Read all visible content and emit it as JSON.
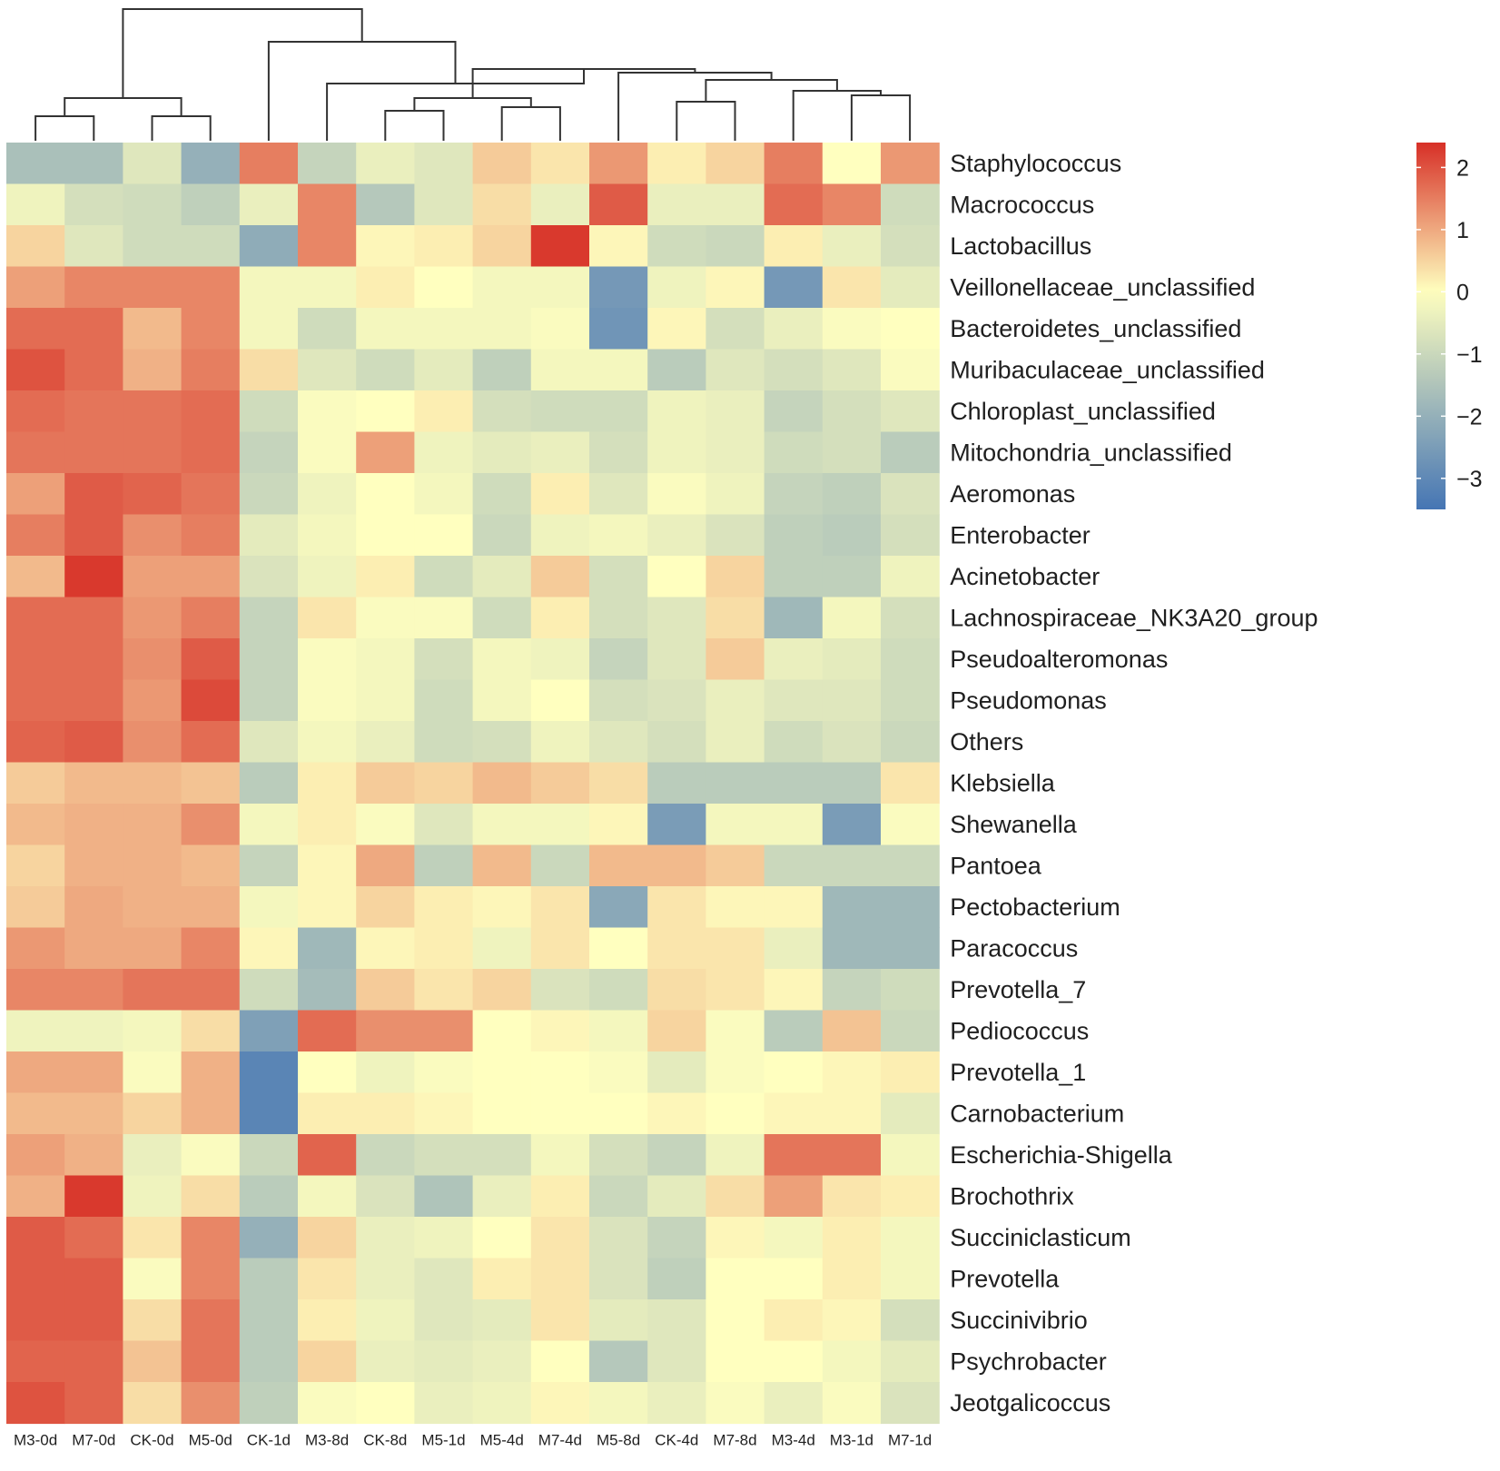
{
  "chart_data": {
    "type": "heatmap",
    "title": "",
    "columns": [
      "M3-0d",
      "M7-0d",
      "CK-0d",
      "M5-0d",
      "CK-1d",
      "M3-8d",
      "CK-8d",
      "M5-1d",
      "M5-4d",
      "M7-4d",
      "M5-8d",
      "CK-4d",
      "M7-8d",
      "M3-4d",
      "M3-1d",
      "M7-1d"
    ],
    "rows": [
      "Staphylococcus",
      "Macrococcus",
      "Lactobacillus",
      "Veillonellaceae_unclassified",
      "Bacteroidetes_unclassified",
      "Muribaculaceae_unclassified",
      "Chloroplast_unclassified",
      "Mitochondria_unclassified",
      "Aeromonas",
      "Enterobacter",
      "Acinetobacter",
      "Lachnospiraceae_NK3A20_group",
      "Pseudoalteromonas",
      "Pseudomonas",
      "Others",
      "Klebsiella",
      "Shewanella",
      "Pantoea",
      "Pectobacterium",
      "Paracoccus",
      "Prevotella_7",
      "Pediococcus",
      "Prevotella_1",
      "Carnobacterium",
      "Escherichia-Shigella",
      "Brochothrix",
      "Succiniclasticum",
      "Prevotella",
      "Succinivibrio",
      "Psychrobacter",
      "Jeotgalicoccus"
    ],
    "values": [
      [
        -1.6,
        -1.6,
        -0.6,
        -2.0,
        1.5,
        -1.1,
        -0.4,
        -0.6,
        0.6,
        0.3,
        1.2,
        0.2,
        0.5,
        1.5,
        0.0,
        1.2
      ],
      [
        -0.3,
        -0.8,
        -0.9,
        -1.2,
        -0.4,
        1.4,
        -1.4,
        -0.6,
        0.4,
        -0.4,
        1.9,
        -0.4,
        -0.4,
        1.7,
        1.4,
        -0.9
      ],
      [
        0.5,
        -0.6,
        -0.9,
        -0.9,
        -2.1,
        1.4,
        0.1,
        0.2,
        0.5,
        2.3,
        0.1,
        -0.9,
        -1.0,
        0.2,
        -0.4,
        -0.8
      ],
      [
        1.1,
        1.4,
        1.4,
        1.4,
        -0.2,
        -0.2,
        0.2,
        0.0,
        -0.2,
        -0.2,
        -2.6,
        -0.3,
        0.1,
        -2.6,
        0.3,
        -0.5
      ],
      [
        1.7,
        1.7,
        0.8,
        1.4,
        -0.2,
        -0.9,
        -0.2,
        -0.2,
        -0.2,
        -0.1,
        -2.7,
        0.1,
        -0.8,
        -0.4,
        -0.1,
        0.0
      ],
      [
        2.0,
        1.7,
        0.9,
        1.5,
        0.4,
        -0.6,
        -0.9,
        -0.5,
        -1.2,
        -0.2,
        -0.2,
        -1.3,
        -0.6,
        -0.8,
        -0.6,
        -0.1
      ],
      [
        1.7,
        1.6,
        1.6,
        1.7,
        -0.9,
        -0.1,
        0.0,
        0.2,
        -0.8,
        -0.9,
        -0.9,
        -0.3,
        -0.4,
        -1.1,
        -0.8,
        -0.6
      ],
      [
        1.6,
        1.6,
        1.6,
        1.7,
        -1.1,
        -0.1,
        1.1,
        -0.3,
        -0.5,
        -0.4,
        -0.8,
        -0.3,
        -0.4,
        -0.9,
        -0.8,
        -1.3
      ],
      [
        1.1,
        1.9,
        1.8,
        1.6,
        -1.0,
        -0.3,
        0.0,
        -0.2,
        -0.9,
        0.2,
        -0.6,
        -0.1,
        -0.3,
        -1.1,
        -1.2,
        -0.7
      ],
      [
        1.5,
        1.9,
        1.3,
        1.5,
        -0.5,
        -0.2,
        0.0,
        0.0,
        -1.0,
        -0.3,
        -0.2,
        -0.4,
        -0.7,
        -1.2,
        -1.3,
        -0.8
      ],
      [
        0.8,
        2.3,
        1.1,
        1.1,
        -0.7,
        -0.3,
        0.2,
        -0.9,
        -0.5,
        0.6,
        -0.8,
        0.0,
        0.5,
        -1.2,
        -1.2,
        -0.3
      ],
      [
        1.7,
        1.7,
        1.2,
        1.5,
        -1.1,
        0.3,
        -0.1,
        -0.1,
        -0.9,
        0.2,
        -0.8,
        -0.6,
        0.4,
        -1.8,
        -0.2,
        -0.8
      ],
      [
        1.7,
        1.7,
        1.3,
        1.9,
        -1.1,
        -0.1,
        -0.2,
        -0.8,
        -0.2,
        -0.3,
        -1.1,
        -0.6,
        0.6,
        -0.4,
        -0.5,
        -0.9
      ],
      [
        1.7,
        1.7,
        1.2,
        2.1,
        -1.1,
        -0.1,
        -0.2,
        -0.9,
        -0.2,
        0.0,
        -0.8,
        -0.7,
        -0.4,
        -0.6,
        -0.6,
        -0.9
      ],
      [
        1.8,
        1.9,
        1.3,
        1.7,
        -0.6,
        -0.2,
        -0.4,
        -0.9,
        -0.8,
        -0.3,
        -0.6,
        -0.8,
        -0.4,
        -0.9,
        -0.7,
        -1.0
      ],
      [
        0.6,
        0.8,
        0.8,
        0.7,
        -1.3,
        0.2,
        0.6,
        0.5,
        0.8,
        0.6,
        0.4,
        -1.3,
        -1.3,
        -1.3,
        -1.3,
        0.3
      ],
      [
        0.8,
        0.9,
        0.9,
        1.3,
        -0.2,
        0.2,
        -0.1,
        -0.6,
        -0.2,
        -0.2,
        0.1,
        -2.5,
        -0.2,
        -0.2,
        -2.5,
        -0.1
      ],
      [
        0.5,
        0.9,
        0.9,
        0.8,
        -1.1,
        0.1,
        1.0,
        -1.2,
        0.8,
        -1.0,
        0.8,
        0.8,
        0.6,
        -1.0,
        -1.0,
        -1.0
      ],
      [
        0.6,
        1.0,
        0.9,
        0.9,
        -0.2,
        0.1,
        0.5,
        0.2,
        0.1,
        0.3,
        -2.2,
        0.3,
        0.1,
        0.1,
        -1.8,
        -1.8
      ],
      [
        1.2,
        1.0,
        1.0,
        1.4,
        0.1,
        -1.8,
        0.1,
        0.2,
        -0.3,
        0.3,
        0.0,
        0.3,
        0.3,
        -0.4,
        -1.8,
        -1.8
      ],
      [
        1.4,
        1.4,
        1.6,
        1.6,
        -0.9,
        -1.7,
        0.6,
        0.3,
        0.5,
        -0.7,
        -0.9,
        0.4,
        0.3,
        0.1,
        -1.1,
        -0.9
      ],
      [
        -0.3,
        -0.3,
        -0.2,
        0.4,
        -2.4,
        1.7,
        1.3,
        1.3,
        0.0,
        0.1,
        -0.2,
        0.5,
        -0.1,
        -1.3,
        0.7,
        -1.0
      ],
      [
        1.0,
        1.0,
        -0.1,
        0.9,
        -3.1,
        0.0,
        -0.3,
        -0.1,
        0.0,
        0.0,
        -0.1,
        -0.5,
        -0.1,
        0.0,
        0.1,
        0.2
      ],
      [
        0.8,
        0.8,
        0.5,
        0.9,
        -3.1,
        0.2,
        0.2,
        0.1,
        0.0,
        0.0,
        0.0,
        0.1,
        0.0,
        0.1,
        0.1,
        -0.5
      ],
      [
        1.1,
        0.9,
        -0.4,
        -0.1,
        -1.0,
        1.8,
        -1.0,
        -0.8,
        -0.8,
        -0.2,
        -0.8,
        -1.1,
        -0.3,
        1.6,
        1.6,
        -0.2
      ],
      [
        0.9,
        2.3,
        -0.3,
        0.4,
        -1.3,
        -0.2,
        -0.7,
        -1.5,
        -0.4,
        0.2,
        -1.0,
        -0.5,
        0.4,
        1.1,
        0.3,
        0.2
      ],
      [
        1.9,
        1.7,
        0.3,
        1.4,
        -2.0,
        0.5,
        -0.4,
        -0.3,
        0.0,
        0.3,
        -0.7,
        -1.1,
        0.1,
        -0.2,
        0.2,
        -0.2
      ],
      [
        1.9,
        1.9,
        -0.1,
        1.4,
        -1.3,
        0.3,
        -0.4,
        -0.6,
        0.2,
        0.3,
        -0.7,
        -1.2,
        0.0,
        0.0,
        0.2,
        -0.2
      ],
      [
        1.9,
        1.9,
        0.4,
        1.6,
        -1.3,
        0.2,
        -0.3,
        -0.6,
        -0.5,
        0.3,
        -0.5,
        -0.6,
        0.0,
        0.2,
        0.1,
        -0.8
      ],
      [
        1.8,
        1.8,
        0.7,
        1.6,
        -1.3,
        0.5,
        -0.4,
        -0.5,
        -0.4,
        0.0,
        -1.4,
        -0.6,
        0.0,
        0.0,
        -0.2,
        -0.5
      ],
      [
        2.0,
        1.8,
        0.4,
        1.3,
        -1.2,
        -0.1,
        0.0,
        -0.4,
        -0.3,
        0.1,
        -0.2,
        -0.4,
        -0.1,
        -0.4,
        -0.1,
        -0.7
      ]
    ],
    "colorbar": {
      "ticks": [
        2,
        1,
        0,
        -1,
        -2,
        -3
      ],
      "tick_labels": [
        "2",
        "1",
        "0",
        "−1",
        "−2",
        "−3"
      ],
      "min": -3.5,
      "max": 2.4
    },
    "colors": {
      "high": "#d73027",
      "mid": "#ffffbf",
      "low": "#4575b4"
    },
    "legend_position": "top-right"
  }
}
